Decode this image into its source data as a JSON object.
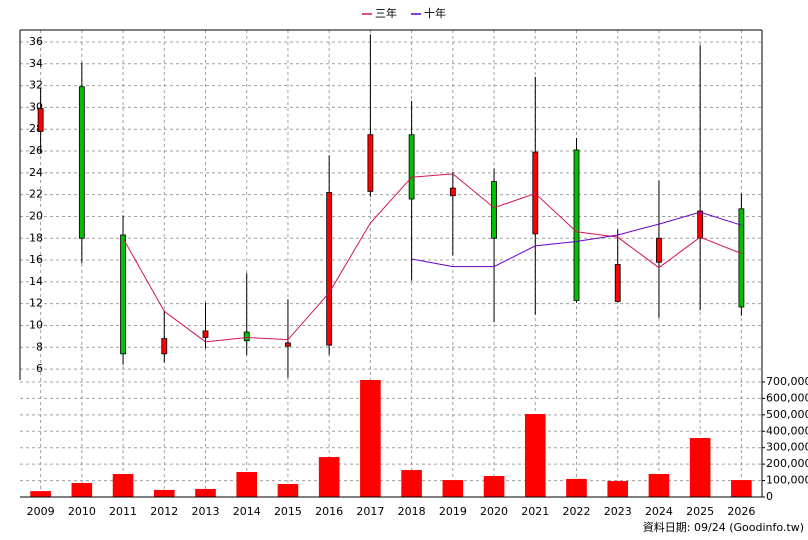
{
  "chart_data": [
    {
      "type": "candlestick",
      "categories": [
        "2009",
        "2010",
        "2011",
        "2012",
        "2013",
        "2014",
        "2015",
        "2016",
        "2017",
        "2018",
        "2019",
        "2020",
        "2021",
        "2022",
        "2023",
        "2024",
        "2025",
        "2026"
      ],
      "open": [
        27.8,
        31.9,
        18.3,
        7.4,
        8.9,
        9.4,
        8.1,
        8.2,
        22.3,
        27.5,
        21.9,
        23.2,
        18.4,
        26.1,
        12.2,
        15.8,
        18.0,
        20.7
      ],
      "high": [
        31.8,
        34.1,
        20.1,
        11.4,
        12.1,
        14.8,
        12.4,
        25.6,
        36.7,
        30.6,
        24.1,
        24.4,
        32.8,
        27.2,
        18.8,
        23.3,
        35.7,
        22.1
      ],
      "low": [
        25.8,
        15.7,
        6.4,
        6.6,
        7.9,
        7.3,
        5.2,
        7.3,
        21.8,
        14.1,
        16.4,
        10.3,
        11.0,
        12.1,
        12.1,
        10.7,
        11.4,
        10.9
      ],
      "close": [
        29.9,
        18.0,
        7.4,
        8.8,
        9.5,
        8.6,
        8.4,
        22.2,
        27.5,
        21.6,
        22.6,
        18.0,
        25.9,
        12.3,
        15.6,
        18.0,
        20.5,
        11.7
      ],
      "up_color": "#ff0000",
      "down_color": "#00c000",
      "series": [
        {
          "name": "三年",
          "color": "#d4145a",
          "values": [
            null,
            null,
            18.0,
            11.3,
            8.5,
            8.9,
            8.7,
            13.0,
            19.4,
            23.6,
            23.9,
            20.8,
            22.1,
            18.6,
            18.1,
            15.3,
            18.1,
            16.6
          ]
        },
        {
          "name": "十年",
          "color": "#6a00c8",
          "values": [
            null,
            null,
            null,
            null,
            null,
            null,
            null,
            null,
            null,
            16.1,
            15.4,
            15.4,
            17.3,
            17.7,
            18.3,
            19.3,
            20.4,
            19.2
          ]
        }
      ],
      "ylim": [
        5,
        37.1
      ],
      "yticks": [
        6,
        8,
        10,
        12,
        14,
        16,
        18,
        20,
        22,
        24,
        26,
        28,
        30,
        32,
        34,
        36
      ],
      "grid": true
    },
    {
      "type": "bar",
      "color": "#ff0000",
      "values": [
        36000,
        85000,
        140000,
        43000,
        49000,
        152000,
        79000,
        243000,
        712000,
        164000,
        103000,
        128000,
        505000,
        110000,
        97000,
        140000,
        359000,
        103000
      ],
      "ylim": [
        0,
        712000
      ],
      "yticks": [
        0,
        {
          "value": 100000,
          "label": "100,000"
        },
        {
          "value": 200000,
          "label": "200,000"
        },
        {
          "value": 300000,
          "label": "300,000"
        },
        {
          "value": 400000,
          "label": "400,000"
        },
        {
          "value": 500000,
          "label": "500,000"
        },
        {
          "value": 600000,
          "label": "600,000"
        },
        {
          "value": 700000,
          "label": "700,000"
        }
      ],
      "grid": true,
      "footnote": "資料日期: 09/24  (Goodinfo.tw)"
    }
  ]
}
